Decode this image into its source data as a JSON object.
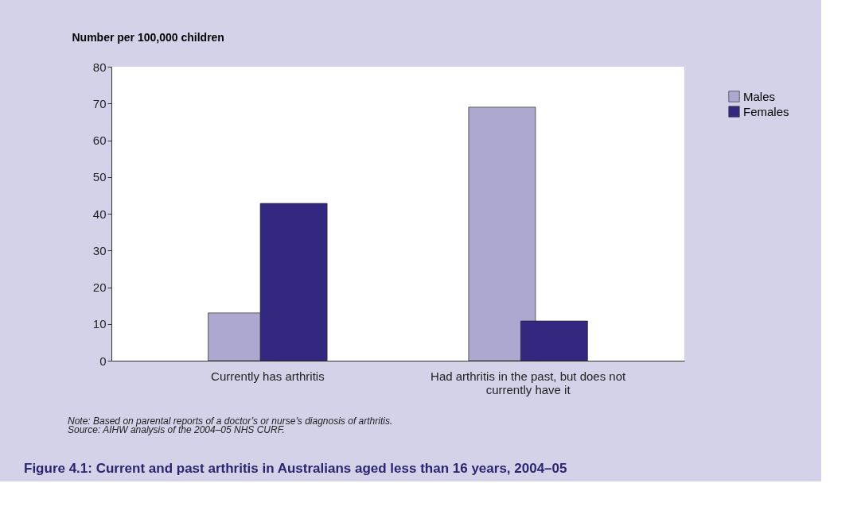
{
  "chart_data": {
    "type": "bar",
    "title": "Figure 4.1: Current and past arthritis in Australians aged less than 16 years, 2004–05",
    "ylabel": "Number per 100,000 children",
    "categories": [
      "Currently has arthritis",
      "Had arthritis in the past, but does not currently have it"
    ],
    "series": [
      {
        "name": "Males",
        "color": "#aca8d0",
        "values": [
          13,
          69
        ]
      },
      {
        "name": "Females",
        "color": "#33287f",
        "values": [
          42.8,
          10.8
        ]
      }
    ],
    "ylim": [
      0,
      80
    ],
    "yticks": [
      0,
      10,
      20,
      30,
      40,
      50,
      60,
      70,
      80
    ],
    "grid": false,
    "legend": "right",
    "annotations": [
      "Note: Based on parental reports of a doctor’s or nurse’s diagnosis of arthritis.",
      "Source: AIHW analysis of the 2004–05 NHS CURF."
    ]
  }
}
